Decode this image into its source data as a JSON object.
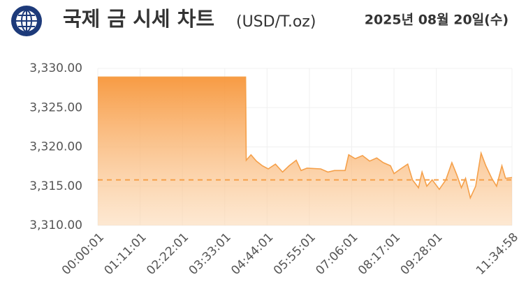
{
  "chart_data": {
    "type": "area",
    "title": "국제 금 시세 차트",
    "unit": "(USD/T.oz)",
    "date": "2025년 08월 20일(수)",
    "color": "#f5a04a",
    "grid": true,
    "reference_line": 3315.8,
    "x": [
      "00:00:01",
      "04:08:01",
      "04:09:01",
      "04:17:01",
      "04:26:01",
      "04:36:01",
      "04:46:01",
      "04:58:01",
      "05:10:01",
      "05:21:01",
      "05:33:01",
      "05:41:01",
      "05:51:01",
      "06:14:01",
      "06:26:01",
      "06:37:01",
      "06:55:01",
      "07:01:01",
      "07:12:01",
      "07:24:01",
      "07:36:01",
      "07:48:01",
      "07:59:01",
      "08:11:01",
      "08:17:01",
      "08:28:01",
      "08:40:01",
      "08:48:01",
      "08:58:01",
      "09:04:01",
      "09:12:01",
      "09:21:01",
      "09:33:01",
      "09:44:01",
      "09:54:01",
      "10:02:01",
      "10:10:01",
      "10:17:01",
      "10:25:01",
      "10:34:01",
      "10:43:01",
      "10:51:01",
      "11:01:01",
      "11:09:01",
      "11:18:01",
      "11:24:01",
      "11:34:58"
    ],
    "values": [
      3328.9,
      3328.9,
      3318.3,
      3319.0,
      3318.2,
      3317.6,
      3317.2,
      3317.8,
      3316.8,
      3317.6,
      3318.3,
      3317.0,
      3317.3,
      3317.2,
      3316.8,
      3317.0,
      3317.0,
      3319.0,
      3318.5,
      3318.9,
      3318.2,
      3318.6,
      3318.0,
      3317.6,
      3316.6,
      3317.2,
      3317.8,
      3315.8,
      3314.8,
      3316.8,
      3315.0,
      3315.8,
      3314.6,
      3315.8,
      3318.0,
      3316.5,
      3314.8,
      3316.0,
      3313.5,
      3315.0,
      3319.2,
      3317.6,
      3316.0,
      3315.0,
      3317.6,
      3316.0,
      3316.1
    ],
    "xlim": [
      "00:00:01",
      "11:34:58"
    ],
    "xticks": [
      "00:00:01",
      "01:11:01",
      "02:22:01",
      "03:33:01",
      "04:44:01",
      "05:55:01",
      "07:06:01",
      "08:17:01",
      "09:28:01",
      "11:34:58"
    ],
    "ylim": [
      3310,
      3330
    ],
    "yticks": [
      {
        "value": 3310,
        "label": "3,310.00"
      },
      {
        "value": 3315,
        "label": "3,315.00"
      },
      {
        "value": 3320,
        "label": "3,320.00"
      },
      {
        "value": 3325,
        "label": "3,325.00"
      },
      {
        "value": 3330,
        "label": "3,330.00"
      }
    ]
  }
}
